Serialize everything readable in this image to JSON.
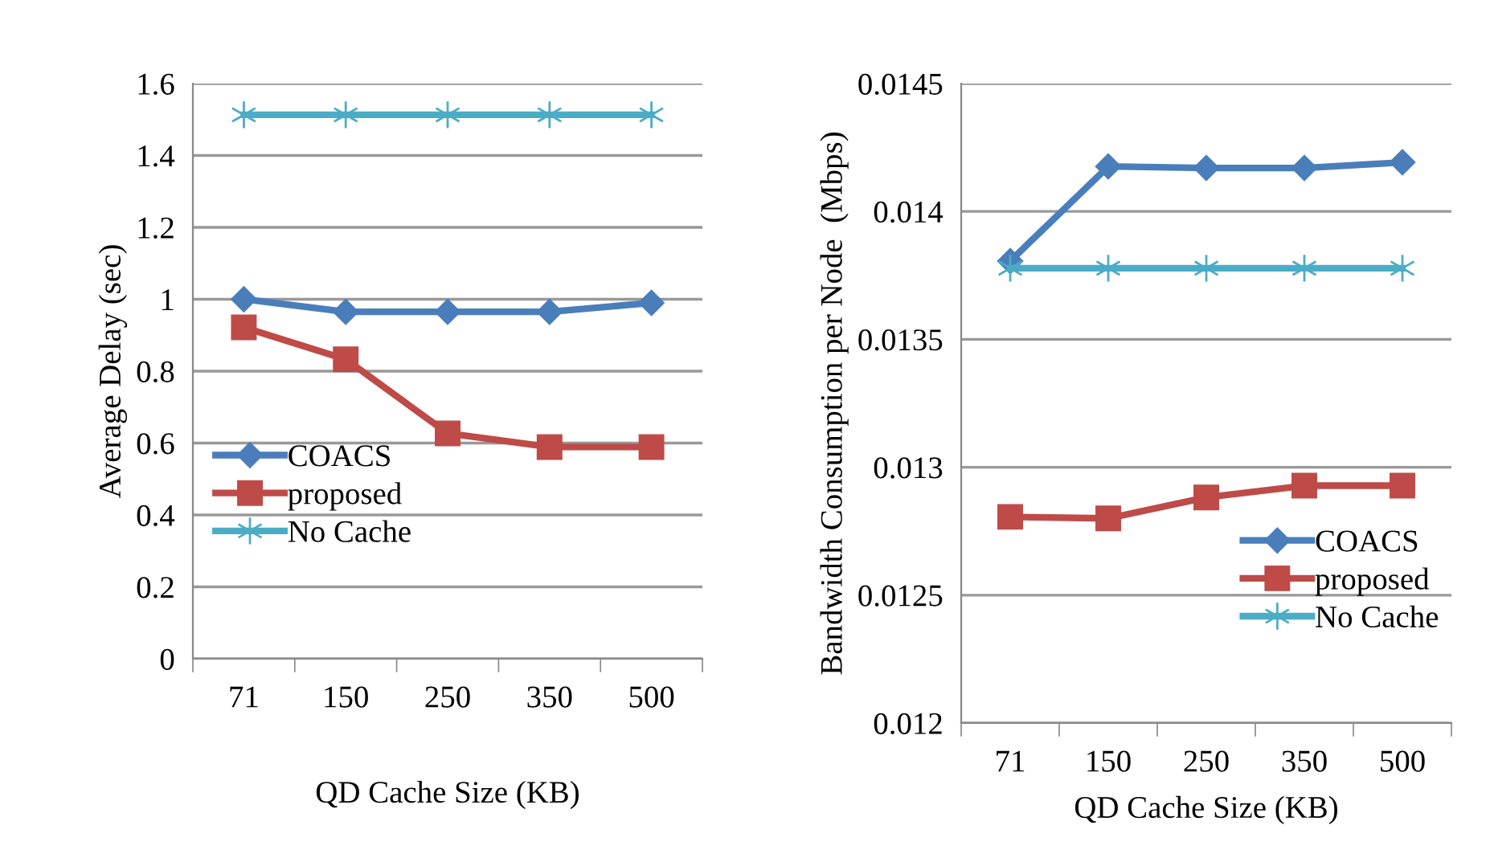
{
  "chart_data": [
    {
      "type": "line",
      "xlabel": "QD Cache Size (KB)",
      "ylabel": "Average Delay (sec)",
      "categories": [
        "71",
        "150",
        "250",
        "350",
        "500"
      ],
      "ylim": [
        0,
        1.6
      ],
      "yticks": [
        0,
        0.2,
        0.4,
        0.6,
        0.8,
        1,
        1.2,
        1.4,
        1.6
      ],
      "grid": "y",
      "legend": "bottom left",
      "series": [
        {
          "name": "COACS",
          "color": "#4a7ebb",
          "marker": "diamond",
          "values": [
            1.0,
            0.965,
            0.965,
            0.965,
            0.99
          ]
        },
        {
          "name": "proposed",
          "color": "#be4b48",
          "marker": "square",
          "values": [
            0.922,
            0.833,
            0.627,
            0.589,
            0.589
          ]
        },
        {
          "name": "No Cache",
          "color": "#4bacc6",
          "marker": "cross",
          "values": [
            1.513,
            1.513,
            1.513,
            1.513,
            1.513
          ]
        }
      ]
    },
    {
      "type": "line",
      "xlabel": "QD Cache Size (KB)",
      "ylabel": "Bandwidth Consumption per Node  (Mbps)",
      "categories": [
        "71",
        "150",
        "250",
        "350",
        "500"
      ],
      "ylim": [
        0.012,
        0.0145
      ],
      "yticks": [
        0.012,
        0.0125,
        0.013,
        0.0135,
        0.014,
        0.0145
      ],
      "grid": "y",
      "legend": "bottom right",
      "series": [
        {
          "name": "COACS",
          "color": "#4a7ebb",
          "marker": "diamond",
          "values": [
            0.013806,
            0.014176,
            0.01417,
            0.01417,
            0.014192
          ]
        },
        {
          "name": "proposed",
          "color": "#be4b48",
          "marker": "square",
          "values": [
            0.012806,
            0.0128,
            0.012882,
            0.012928,
            0.012928
          ]
        },
        {
          "name": "No Cache",
          "color": "#4bacc6",
          "marker": "cross",
          "values": [
            0.013778,
            0.013778,
            0.013778,
            0.013778,
            0.013778
          ]
        }
      ]
    }
  ]
}
